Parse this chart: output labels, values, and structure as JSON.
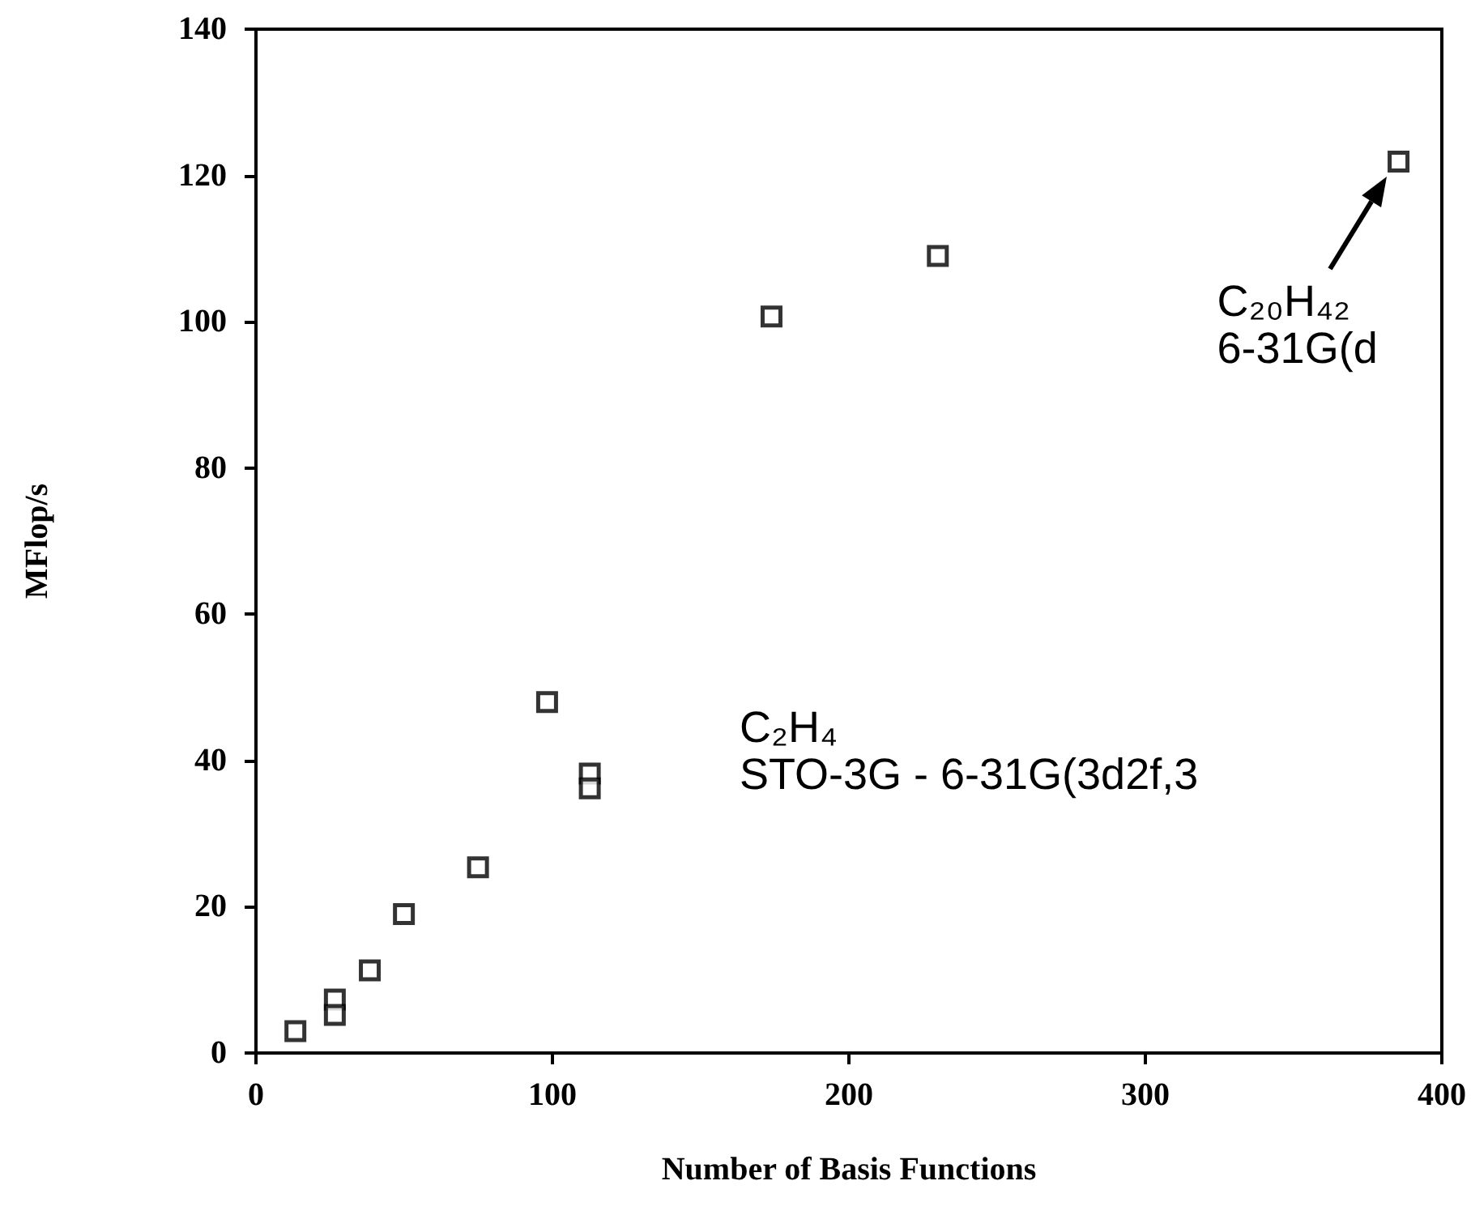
{
  "chart_data": {
    "type": "scatter",
    "xlabel": "Number of Basis Functions",
    "ylabel": "MFlop/s",
    "x": [
      13.3,
      26.6,
      26.6,
      38.4,
      49.9,
      74.9,
      98.2,
      112.6,
      112.6,
      173.9,
      230,
      385.4
    ],
    "series": [
      {
        "color": "#000000",
        "values": [
          3.0,
          7.3,
          5.2,
          11.3,
          19.0,
          25.4,
          48.0,
          38.2,
          36.2,
          100.7,
          109.0,
          121.9
        ]
      }
    ],
    "xlim": [
      0,
      400
    ],
    "xticks": [
      0,
      100,
      200,
      300,
      400
    ],
    "ylim": [
      0,
      140
    ],
    "yticks": [
      0,
      20,
      40,
      60,
      80,
      100,
      120,
      140
    ],
    "grid": false,
    "marker": "square",
    "annotations": [
      "C₂H₄\nSTO-3G  -  6-31G(3d2f,3",
      {
        "text": "C₂₀H₄₂\n6-31G(d",
        "x": 385.4,
        "y": 121.9
      }
    ]
  }
}
